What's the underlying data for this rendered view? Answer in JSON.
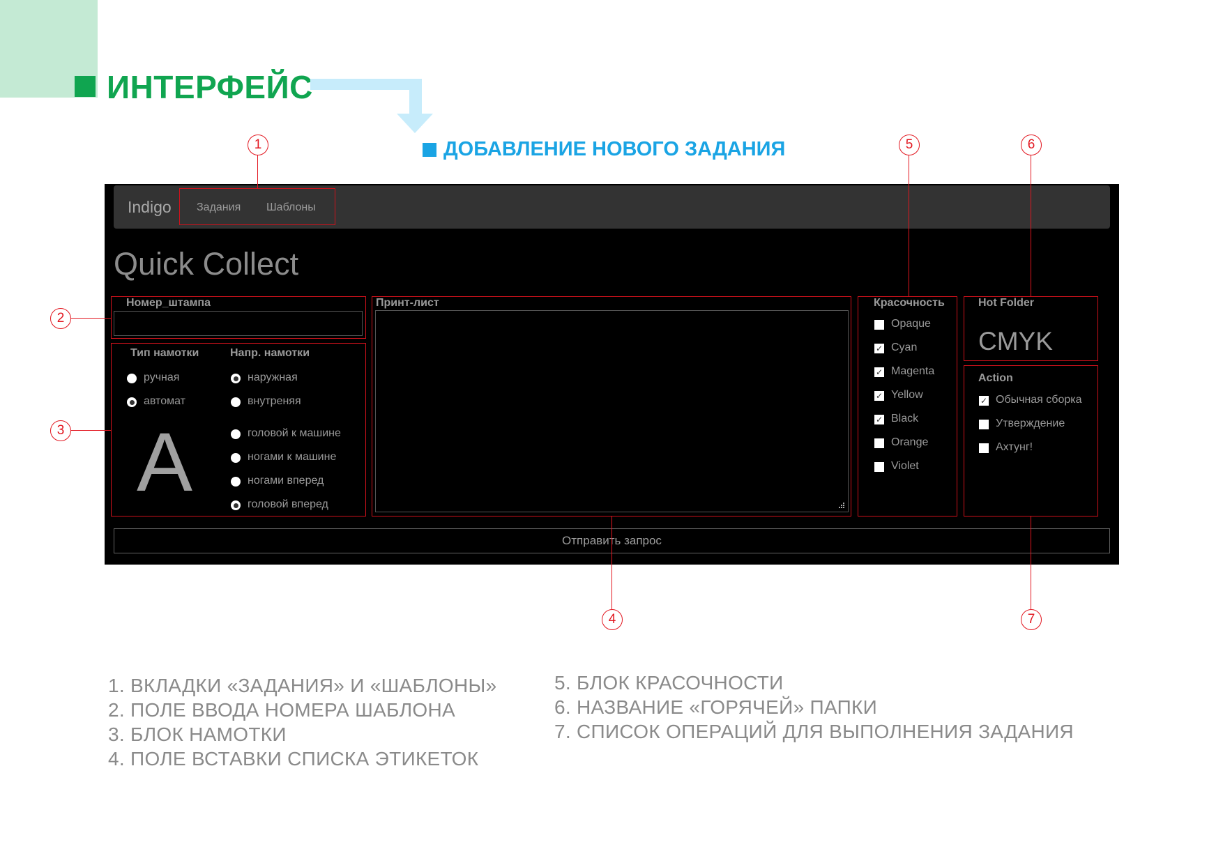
{
  "heading": {
    "title": "ИНТЕРФЕЙС",
    "subtitle": "ДОБАВЛЕНИЕ НОВОГО ЗАДАНИЯ"
  },
  "colors": {
    "green": "#10a550",
    "light_green": "#c4ead4",
    "blue": "#1aa4e4",
    "light_blue": "#c7ecfb",
    "callout_red": "#e2161f"
  },
  "callouts": [
    "1",
    "2",
    "3",
    "4",
    "5",
    "6",
    "7"
  ],
  "app": {
    "brand": "Indigo",
    "nav": [
      "Задания",
      "Шаблоны"
    ],
    "page_title": "Quick Collect",
    "stamp_number": {
      "label": "Номер_штампа",
      "value": ""
    },
    "winding": {
      "type_label": "Тип намотки",
      "type_options": [
        {
          "label": "ручная",
          "checked": false
        },
        {
          "label": "автомат",
          "checked": true
        }
      ],
      "direction_label": "Напр. намотки",
      "direction_options": [
        {
          "label": "наружная",
          "checked": true
        },
        {
          "label": "внутреняя",
          "checked": false
        },
        {
          "label": "головой к машине",
          "checked": false
        },
        {
          "label": "ногами к машине",
          "checked": false
        },
        {
          "label": "ногами вперед",
          "checked": false
        },
        {
          "label": "головой вперед",
          "checked": true
        }
      ],
      "preview_letter": "A"
    },
    "print_sheet": {
      "label": "Принт-лист",
      "value": ""
    },
    "colorfulness": {
      "label": "Красочность",
      "options": [
        {
          "label": "Opaque",
          "checked": false
        },
        {
          "label": "Cyan",
          "checked": true
        },
        {
          "label": "Magenta",
          "checked": true
        },
        {
          "label": "Yellow",
          "checked": true
        },
        {
          "label": "Black",
          "checked": true
        },
        {
          "label": "Orange",
          "checked": false
        },
        {
          "label": "Violet",
          "checked": false
        }
      ]
    },
    "hot_folder": {
      "label": "Hot Folder",
      "value": "CMYK"
    },
    "action": {
      "label": "Action",
      "options": [
        {
          "label": "Обычная сборка",
          "checked": true
        },
        {
          "label": "Утверждение",
          "checked": false
        },
        {
          "label": "Ахтунг!",
          "checked": false
        }
      ]
    },
    "submit_label": "Отправить запрос"
  },
  "legend": {
    "left": [
      "1. ВКЛАДКИ «ЗАДАНИЯ» И «ШАБЛОНЫ»",
      "2. ПОЛЕ ВВОДА НОМЕРА ШАБЛОНА",
      "3. БЛОК НАМОТКИ",
      "4. ПОЛЕ ВСТАВКИ СПИСКА ЭТИКЕТОК"
    ],
    "right": [
      "5. БЛОК КРАСОЧНОСТИ",
      "6. НАЗВАНИЕ «ГОРЯЧЕЙ» ПАПКИ",
      "7. СПИСОК ОПЕРАЦИЙ ДЛЯ ВЫПОЛНЕНИЯ ЗАДАНИЯ"
    ]
  }
}
